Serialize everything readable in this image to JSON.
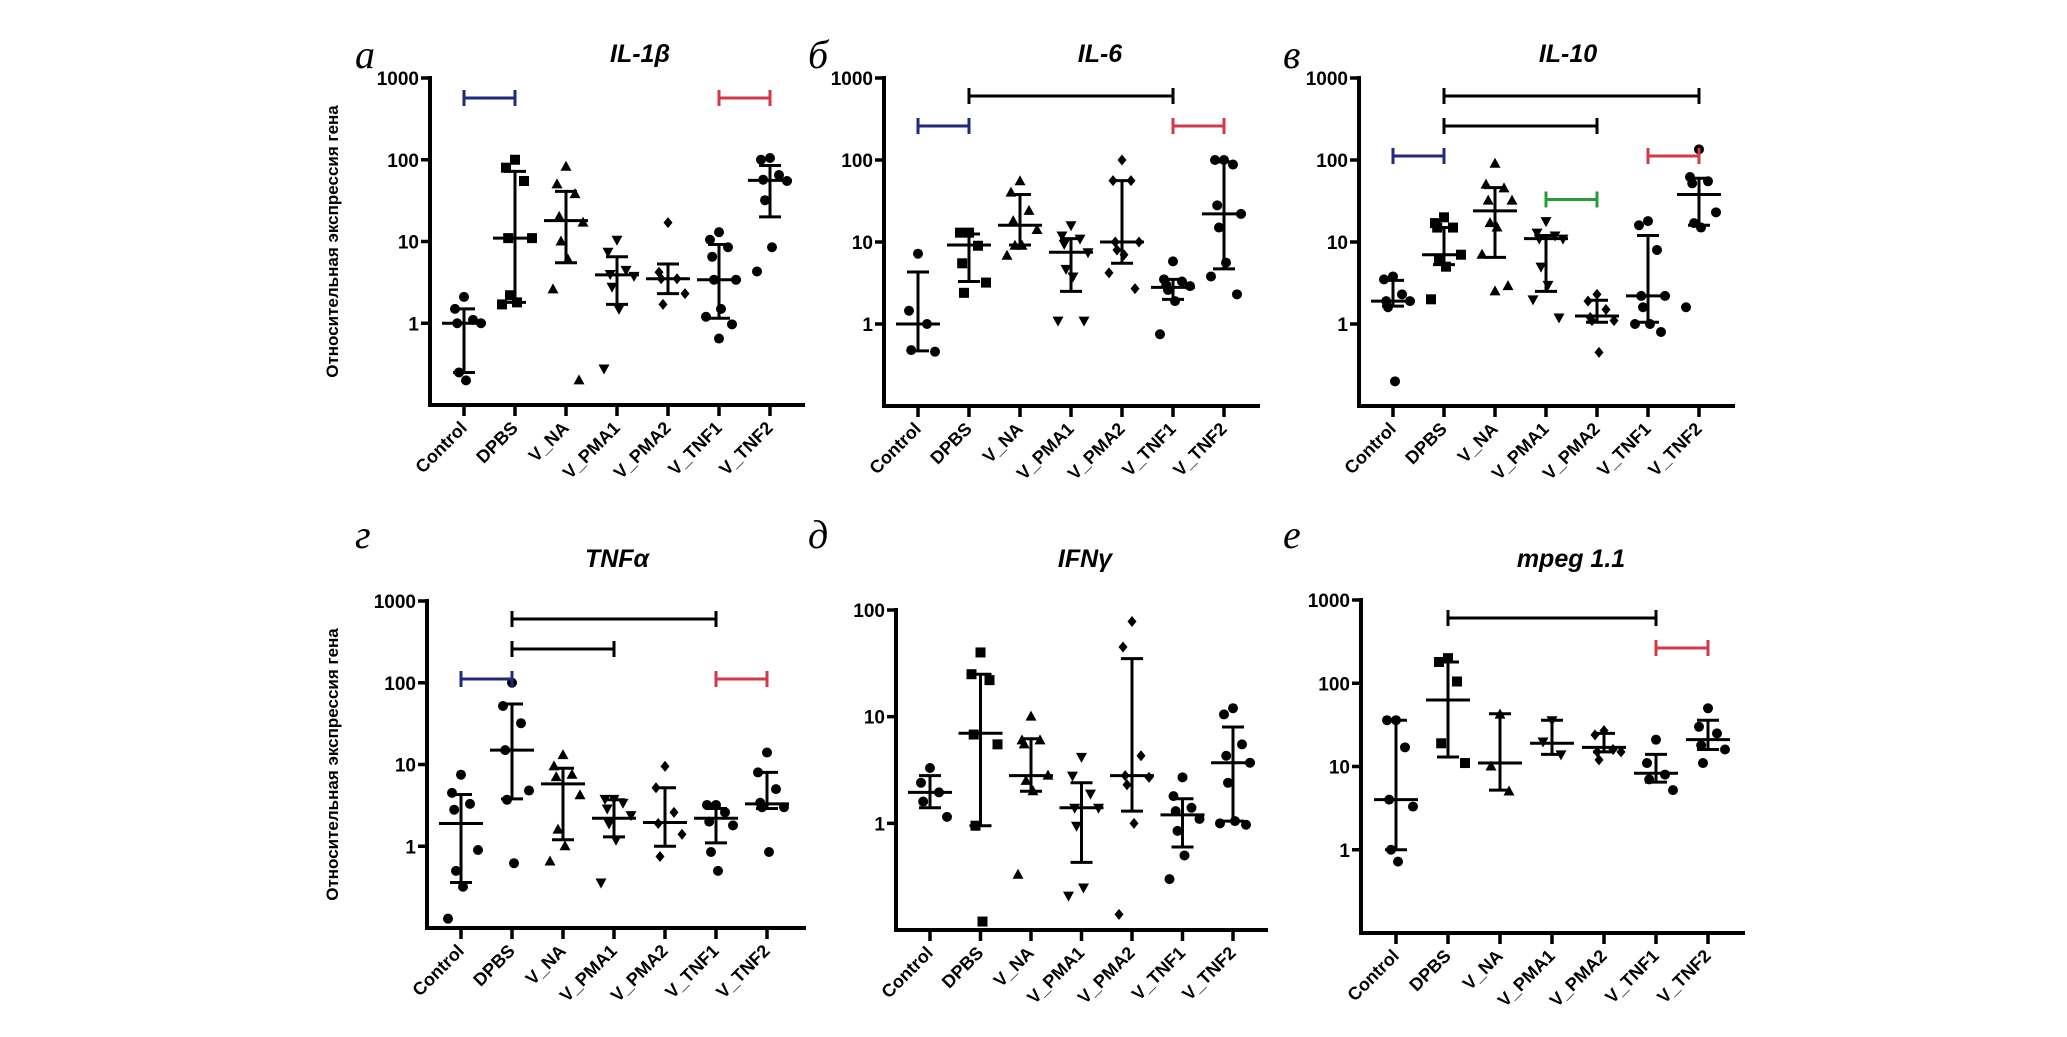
{
  "chart_data": [
    {
      "type": "scatter",
      "panel_letter": "а",
      "title": "IL-1β",
      "ylabel": "Относительная экспрессия гена",
      "yscale": "log",
      "ylim": [
        0.1,
        1000
      ],
      "yticks": [
        "1",
        "10",
        "100",
        "1000"
      ],
      "categories": [
        "Control",
        "DPBS",
        "V_NA",
        "V_PMA1",
        "V_PMA2",
        "V_TNF1",
        "V_TNF2"
      ],
      "markers": [
        "circle",
        "square",
        "triangle-up",
        "triangle-down",
        "diamond",
        "circle",
        "circle"
      ],
      "groups": [
        {
          "points": [
            2.1,
            1.5,
            1.1,
            1.0,
            1.0,
            0.25,
            0.2
          ],
          "median": 1.0,
          "err_low": 0.25,
          "err_high": 1.5
        },
        {
          "points": [
            100,
            80,
            55,
            11,
            11,
            2.2,
            1.8,
            1.7
          ],
          "median": 11,
          "err_low": 1.8,
          "err_high": 72
        },
        {
          "points": [
            82,
            50,
            38,
            20,
            17,
            10,
            6,
            2.6,
            0.2
          ],
          "median": 18,
          "err_low": 5.5,
          "err_high": 41
        },
        {
          "points": [
            10.5,
            7.5,
            4.5,
            4.0,
            3.8,
            2.8,
            1.5,
            0.28
          ],
          "median": 3.9,
          "err_low": 1.7,
          "err_high": 6.5
        },
        {
          "points": [
            17,
            4.2,
            3.5,
            3.5,
            2.3,
            1.7
          ],
          "median": 3.5,
          "err_low": 2.3,
          "err_high": 5.3
        },
        {
          "points": [
            13,
            10.5,
            8.5,
            6.5,
            3.4,
            3.4,
            1.5,
            1.2,
            0.97,
            0.65
          ],
          "median": 3.4,
          "err_low": 1.15,
          "err_high": 9.2
        },
        {
          "points": [
            105,
            100,
            65,
            57,
            55,
            32,
            8.5,
            4.3
          ],
          "median": 56,
          "err_low": 20,
          "err_high": 85
        }
      ],
      "comparisons": [
        {
          "from": "Control",
          "to": "DPBS",
          "color": "#1f2a7a"
        },
        {
          "from": "V_TNF1",
          "to": "V_TNF2",
          "color": "#d23a4a"
        }
      ]
    },
    {
      "type": "scatter",
      "panel_letter": "б",
      "title": "IL-6",
      "ylabel": "",
      "yscale": "log",
      "ylim": [
        0.1,
        1000
      ],
      "yticks": [
        "1",
        "10",
        "100",
        "1000"
      ],
      "categories": [
        "Control",
        "DPBS",
        "V_NA",
        "V_PMA1",
        "V_PMA2",
        "V_TNF1",
        "V_TNF2"
      ],
      "markers": [
        "circle",
        "square",
        "triangle-up",
        "triangle-down",
        "diamond",
        "circle",
        "circle"
      ],
      "groups": [
        {
          "points": [
            7.2,
            1.45,
            1.0,
            0.48,
            0.46
          ],
          "median": 1.0,
          "err_low": 0.47,
          "err_high": 4.3
        },
        {
          "points": [
            13,
            13,
            9,
            5.5,
            3.2,
            2.4
          ],
          "median": 9.2,
          "err_low": 3.3,
          "err_high": 12.5
        },
        {
          "points": [
            55,
            40,
            24,
            18,
            14,
            9.0,
            9.0,
            6.8
          ],
          "median": 16,
          "err_low": 9.2,
          "err_high": 38
        },
        {
          "points": [
            16,
            12,
            11,
            9.5,
            7.5,
            4.7,
            3.8,
            1.1,
            1.1
          ],
          "median": 7.5,
          "err_low": 2.5,
          "err_high": 11
        },
        {
          "points": [
            100,
            56,
            56,
            10,
            10,
            8,
            7,
            4.2,
            2.7
          ],
          "median": 10,
          "err_low": 5.5,
          "err_high": 56
        },
        {
          "points": [
            5.8,
            3.5,
            3.3,
            3.0,
            2.9,
            2.6,
            1.9,
            0.75
          ],
          "median": 2.8,
          "err_low": 2.0,
          "err_high": 3.5
        },
        {
          "points": [
            100,
            100,
            88,
            28,
            22,
            15,
            5.6,
            3.8,
            2.3
          ],
          "median": 22,
          "err_low": 4.7,
          "err_high": 95
        }
      ],
      "comparisons": [
        {
          "from": "DPBS",
          "to": "V_TNF1",
          "color": "#000000"
        },
        {
          "from": "Control",
          "to": "DPBS",
          "color": "#1f2a7a"
        },
        {
          "from": "V_TNF1",
          "to": "V_TNF2",
          "color": "#d23a4a"
        }
      ]
    },
    {
      "type": "scatter",
      "panel_letter": "в",
      "title": "IL-10",
      "ylabel": "",
      "yscale": "log",
      "ylim": [
        0.1,
        1000
      ],
      "yticks": [
        "1",
        "10",
        "100",
        "1000"
      ],
      "categories": [
        "Control",
        "DPBS",
        "V_NA",
        "V_PMA1",
        "V_PMA2",
        "V_TNF1",
        "V_TNF2"
      ],
      "markers": [
        "circle",
        "square",
        "triangle-up",
        "triangle-down",
        "diamond",
        "circle",
        "circle"
      ],
      "groups": [
        {
          "points": [
            3.8,
            3.5,
            2.3,
            1.9,
            1.9,
            1.6,
            0.2
          ],
          "median": 1.9,
          "err_low": 1.65,
          "err_high": 3.4
        },
        {
          "points": [
            20,
            17,
            15,
            15,
            7.0,
            6.3,
            5.0,
            2.0
          ],
          "median": 7.0,
          "err_low": 5.3,
          "err_high": 15
        },
        {
          "points": [
            90,
            50,
            45,
            32,
            32,
            17,
            15,
            7.0,
            2.9,
            2.5
          ],
          "median": 24,
          "err_low": 6.5,
          "err_high": 46
        },
        {
          "points": [
            18,
            13,
            12,
            11,
            11,
            5.0,
            3.0,
            2.0,
            1.2
          ],
          "median": 11,
          "err_low": 2.5,
          "err_high": 12
        },
        {
          "points": [
            2.3,
            1.9,
            1.5,
            1.2,
            1.1,
            1.1,
            0.45
          ],
          "median": 1.25,
          "err_low": 1.05,
          "err_high": 1.95
        },
        {
          "points": [
            18,
            16,
            8.0,
            2.2,
            2.2,
            1.6,
            1.0,
            1.0,
            0.8
          ],
          "median": 2.2,
          "err_low": 1.05,
          "err_high": 12
        },
        {
          "points": [
            135,
            62,
            55,
            52,
            23,
            17,
            15,
            1.6
          ],
          "median": 38,
          "err_low": 16,
          "err_high": 60
        }
      ],
      "comparisons": [
        {
          "from": "DPBS",
          "to": "V_TNF2",
          "color": "#000000"
        },
        {
          "from": "DPBS",
          "to": "V_PMA2",
          "color": "#000000"
        },
        {
          "from": "Control",
          "to": "DPBS",
          "color": "#1f2a7a"
        },
        {
          "from": "V_TNF1",
          "to": "V_TNF2",
          "color": "#d23a4a"
        },
        {
          "from": "V_PMA1",
          "to": "V_PMA2",
          "color": "#2a9a3a"
        }
      ]
    },
    {
      "type": "scatter",
      "panel_letter": "г",
      "title": "TNFα",
      "ylabel": "Относительная экспрессия гена",
      "yscale": "log",
      "ylim": [
        0.1,
        1000
      ],
      "yticks": [
        "1",
        "10",
        "100",
        "1000"
      ],
      "categories": [
        "Control",
        "DPBS",
        "V_NA",
        "V_PMA1",
        "V_PMA2",
        "V_TNF1",
        "V_TNF2"
      ],
      "markers": [
        "circle",
        "circle",
        "triangle-up",
        "triangle-down",
        "diamond",
        "circle",
        "circle"
      ],
      "groups": [
        {
          "points": [
            7.5,
            4.5,
            3.3,
            2.8,
            0.9,
            0.5,
            0.32,
            0.13
          ],
          "median": 1.9,
          "err_low": 0.36,
          "err_high": 4.3
        },
        {
          "points": [
            100,
            52,
            32,
            15,
            4.8,
            3.7,
            0.62
          ],
          "median": 15,
          "err_low": 3.8,
          "err_high": 55
        },
        {
          "points": [
            13,
            9.5,
            7.5,
            7.0,
            4.2,
            1.6,
            1.0,
            0.65
          ],
          "median": 5.8,
          "err_low": 1.2,
          "err_high": 9
        },
        {
          "points": [
            3.8,
            3.8,
            3.4,
            2.9,
            2.4,
            1.9,
            1.2,
            0.36
          ],
          "median": 2.2,
          "err_low": 1.3,
          "err_high": 3.7
        },
        {
          "points": [
            9.5,
            5.2,
            2.6,
            1.9,
            1.4,
            0.75
          ],
          "median": 1.95,
          "err_low": 1.0,
          "err_high": 5.2
        },
        {
          "points": [
            3.2,
            3.2,
            2.6,
            2.0,
            1.8,
            0.85,
            0.5
          ],
          "median": 2.2,
          "err_low": 1.1,
          "err_high": 2.9
        },
        {
          "points": [
            14,
            8.0,
            5.0,
            3.4,
            3.0,
            3.0,
            0.85
          ],
          "median": 3.3,
          "err_low": 2.9,
          "err_high": 8.0
        }
      ],
      "comparisons": [
        {
          "from": "DPBS",
          "to": "V_TNF1",
          "color": "#000000"
        },
        {
          "from": "DPBS",
          "to": "V_PMA1",
          "color": "#000000"
        },
        {
          "from": "Control",
          "to": "DPBS",
          "color": "#1f2a7a"
        },
        {
          "from": "V_TNF1",
          "to": "V_TNF2",
          "color": "#d23a4a"
        }
      ]
    },
    {
      "type": "scatter",
      "panel_letter": "д",
      "title": "IFNγ",
      "ylabel": "",
      "yscale": "log",
      "ylim": [
        0.1,
        100
      ],
      "yticks": [
        "1",
        "10",
        "100"
      ],
      "categories": [
        "Control",
        "DPBS",
        "V_NA",
        "V_PMA1",
        "V_PMA2",
        "V_TNF1",
        "V_TNF2"
      ],
      "markers": [
        "circle",
        "square",
        "triangle-up",
        "triangle-down",
        "diamond",
        "circle",
        "circle"
      ],
      "groups": [
        {
          "points": [
            3.3,
            2.4,
            1.95,
            1.6,
            1.15
          ],
          "median": 1.95,
          "err_low": 1.4,
          "err_high": 2.8
        },
        {
          "points": [
            40,
            25,
            22,
            6.8,
            5.5,
            0.95,
            0.12
          ],
          "median": 7.0,
          "err_low": 0.95,
          "err_high": 25
        },
        {
          "points": [
            10,
            6,
            6,
            5.5,
            2.8,
            2.5,
            2.0,
            0.33
          ],
          "median": 2.8,
          "err_low": 2.0,
          "err_high": 6.2
        },
        {
          "points": [
            4.2,
            2.8,
            1.9,
            1.4,
            1.4,
            0.95,
            0.25,
            0.21
          ],
          "median": 1.4,
          "err_low": 0.43,
          "err_high": 2.4
        },
        {
          "points": [
            78,
            45,
            4.3,
            2.8,
            2.7,
            2.3,
            1.0,
            0.14
          ],
          "median": 2.8,
          "err_low": 1.3,
          "err_high": 35
        },
        {
          "points": [
            2.7,
            1.8,
            1.4,
            1.3,
            1.1,
            0.85,
            0.5,
            0.3
          ],
          "median": 1.2,
          "err_low": 0.6,
          "err_high": 1.7
        },
        {
          "points": [
            12,
            10.5,
            5.5,
            4.3,
            3.7,
            2.4,
            1.05,
            1.0,
            0.97
          ],
          "median": 3.7,
          "err_low": 1.05,
          "err_high": 8.0
        }
      ],
      "comparisons": []
    },
    {
      "type": "scatter",
      "panel_letter": "е",
      "title": "mpeg 1.1",
      "ylabel": "",
      "yscale": "log",
      "ylim": [
        0.1,
        1000
      ],
      "yticks": [
        "1",
        "10",
        "100",
        "1000"
      ],
      "categories": [
        "Control",
        "DPBS",
        "V_NA",
        "V_PMA1",
        "V_PMA2",
        "V_TNF1",
        "V_TNF2"
      ],
      "markers": [
        "circle",
        "square",
        "triangle-up",
        "triangle-down",
        "diamond",
        "circle",
        "circle"
      ],
      "groups": [
        {
          "points": [
            36,
            36,
            17,
            4.0,
            3.3,
            1.0,
            0.72
          ],
          "median": 4.0,
          "err_low": 1.0,
          "err_high": 36
        },
        {
          "points": [
            200,
            180,
            105,
            19,
            11
          ],
          "median": 63,
          "err_low": 13,
          "err_high": 180
        },
        {
          "points": [
            42,
            10,
            5
          ],
          "median": 11,
          "err_low": 5.2,
          "err_high": 43
        },
        {
          "points": [
            36,
            20,
            14
          ],
          "median": 19,
          "err_low": 14,
          "err_high": 36
        },
        {
          "points": [
            27,
            24,
            16,
            15,
            15,
            12
          ],
          "median": 17,
          "err_low": 15,
          "err_high": 25
        },
        {
          "points": [
            21,
            11,
            8.0,
            7.0,
            5.2
          ],
          "median": 8.3,
          "err_low": 6.5,
          "err_high": 14
        },
        {
          "points": [
            50,
            30,
            25,
            18,
            16,
            11
          ],
          "median": 21,
          "err_low": 16,
          "err_high": 36
        }
      ],
      "comparisons": [
        {
          "from": "DPBS",
          "to": "V_TNF1",
          "color": "#000000"
        },
        {
          "from": "V_TNF1",
          "to": "V_TNF2",
          "color": "#d23a4a"
        }
      ]
    }
  ]
}
